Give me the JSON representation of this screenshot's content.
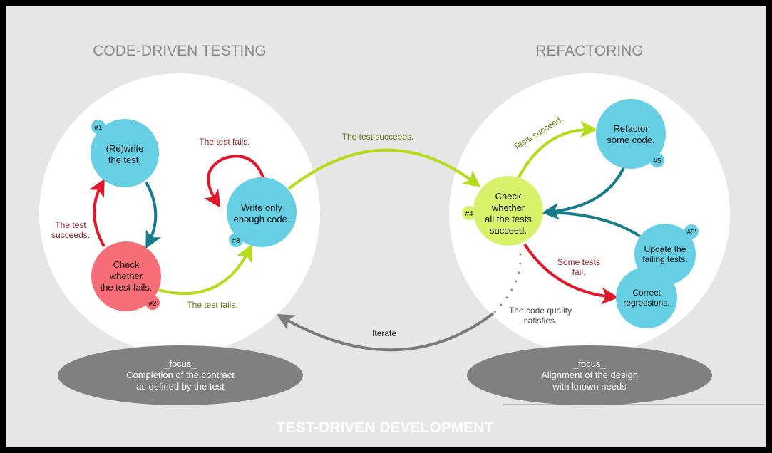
{
  "colors": {
    "node_blue": "#66cfe3",
    "node_red": "#f66d78",
    "node_green": "#d7f26a",
    "arrow_red": "#e0182a",
    "arrow_green": "#b5dc1a",
    "arrow_teal": "#167c8c",
    "arrow_gray": "#7a7a7a",
    "focus_ellipse": "#808080",
    "background": "#e6e6e6"
  },
  "sections": {
    "left_title": "CODE-DRIVEN  TESTING",
    "right_title": "REFACTORING",
    "footer_title": "TEST-DRIVEN  DEVELOPMENT"
  },
  "nodes": {
    "n1": {
      "badge": "#1",
      "line1": "(Re)write",
      "line2": "the test."
    },
    "n2": {
      "badge": "#2",
      "line1": "Check",
      "line2": "whether",
      "line3": "the test fails."
    },
    "n3": {
      "badge": "#3",
      "line1": "Write only",
      "line2": "enough code."
    },
    "n4": {
      "badge": "#4",
      "line1": "Check",
      "line2": "whether",
      "line3": "all the tests",
      "line4": "succeed."
    },
    "n5": {
      "badge": "#5",
      "line1": "Refactor",
      "line2": "some code."
    },
    "n5b": {
      "badge": "#5'",
      "line1": "Update the",
      "line2": "failing tests."
    },
    "n6": {
      "line1": "Correct",
      "line2": "regressions."
    }
  },
  "edges": {
    "test_succeeds_left": {
      "line1": "The test",
      "line2": "succeeds."
    },
    "test_fails_loop": "The test fails.",
    "test_fails_green": "The test fails.",
    "test_succeeds_bridge": "The test succeeds.",
    "tests_succeed": "Tests succeed.",
    "some_tests_fail": {
      "line1": "Some tests",
      "line2": "fail."
    },
    "quality": {
      "line1": "The code quality",
      "line2": "satisfies."
    },
    "iterate": "Iterate"
  },
  "focus": {
    "left": {
      "title": "_focus_",
      "line1": "Completion of the contract",
      "line2": "as defined by the test"
    },
    "right": {
      "title": "_focus_",
      "line1": "Alignment of the design",
      "line2": "with known needs"
    }
  }
}
